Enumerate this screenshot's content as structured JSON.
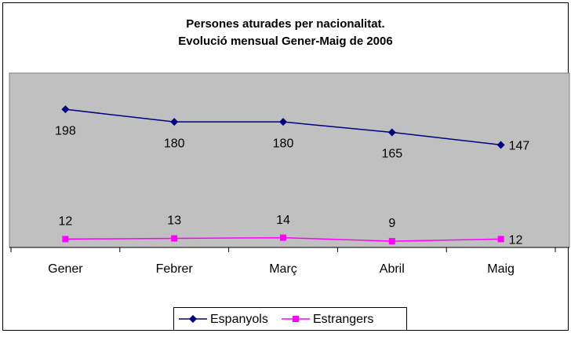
{
  "chart_data": {
    "type": "line",
    "title": [
      "Persones aturades per nacionalitat.",
      "Evolució mensual Gener-Maig de 2006"
    ],
    "categories": [
      "Gener",
      "Febrer",
      "Març",
      "Abril",
      "Maig"
    ],
    "series": [
      {
        "name": "Espanyols",
        "color": "#000080",
        "marker": "diamond",
        "values": [
          198,
          180,
          180,
          165,
          147
        ]
      },
      {
        "name": "Estrangers",
        "color": "#ff00ff",
        "marker": "square",
        "values": [
          12,
          13,
          14,
          9,
          12
        ]
      }
    ],
    "ylim": [
      0,
      250
    ],
    "legend": "bottom"
  }
}
